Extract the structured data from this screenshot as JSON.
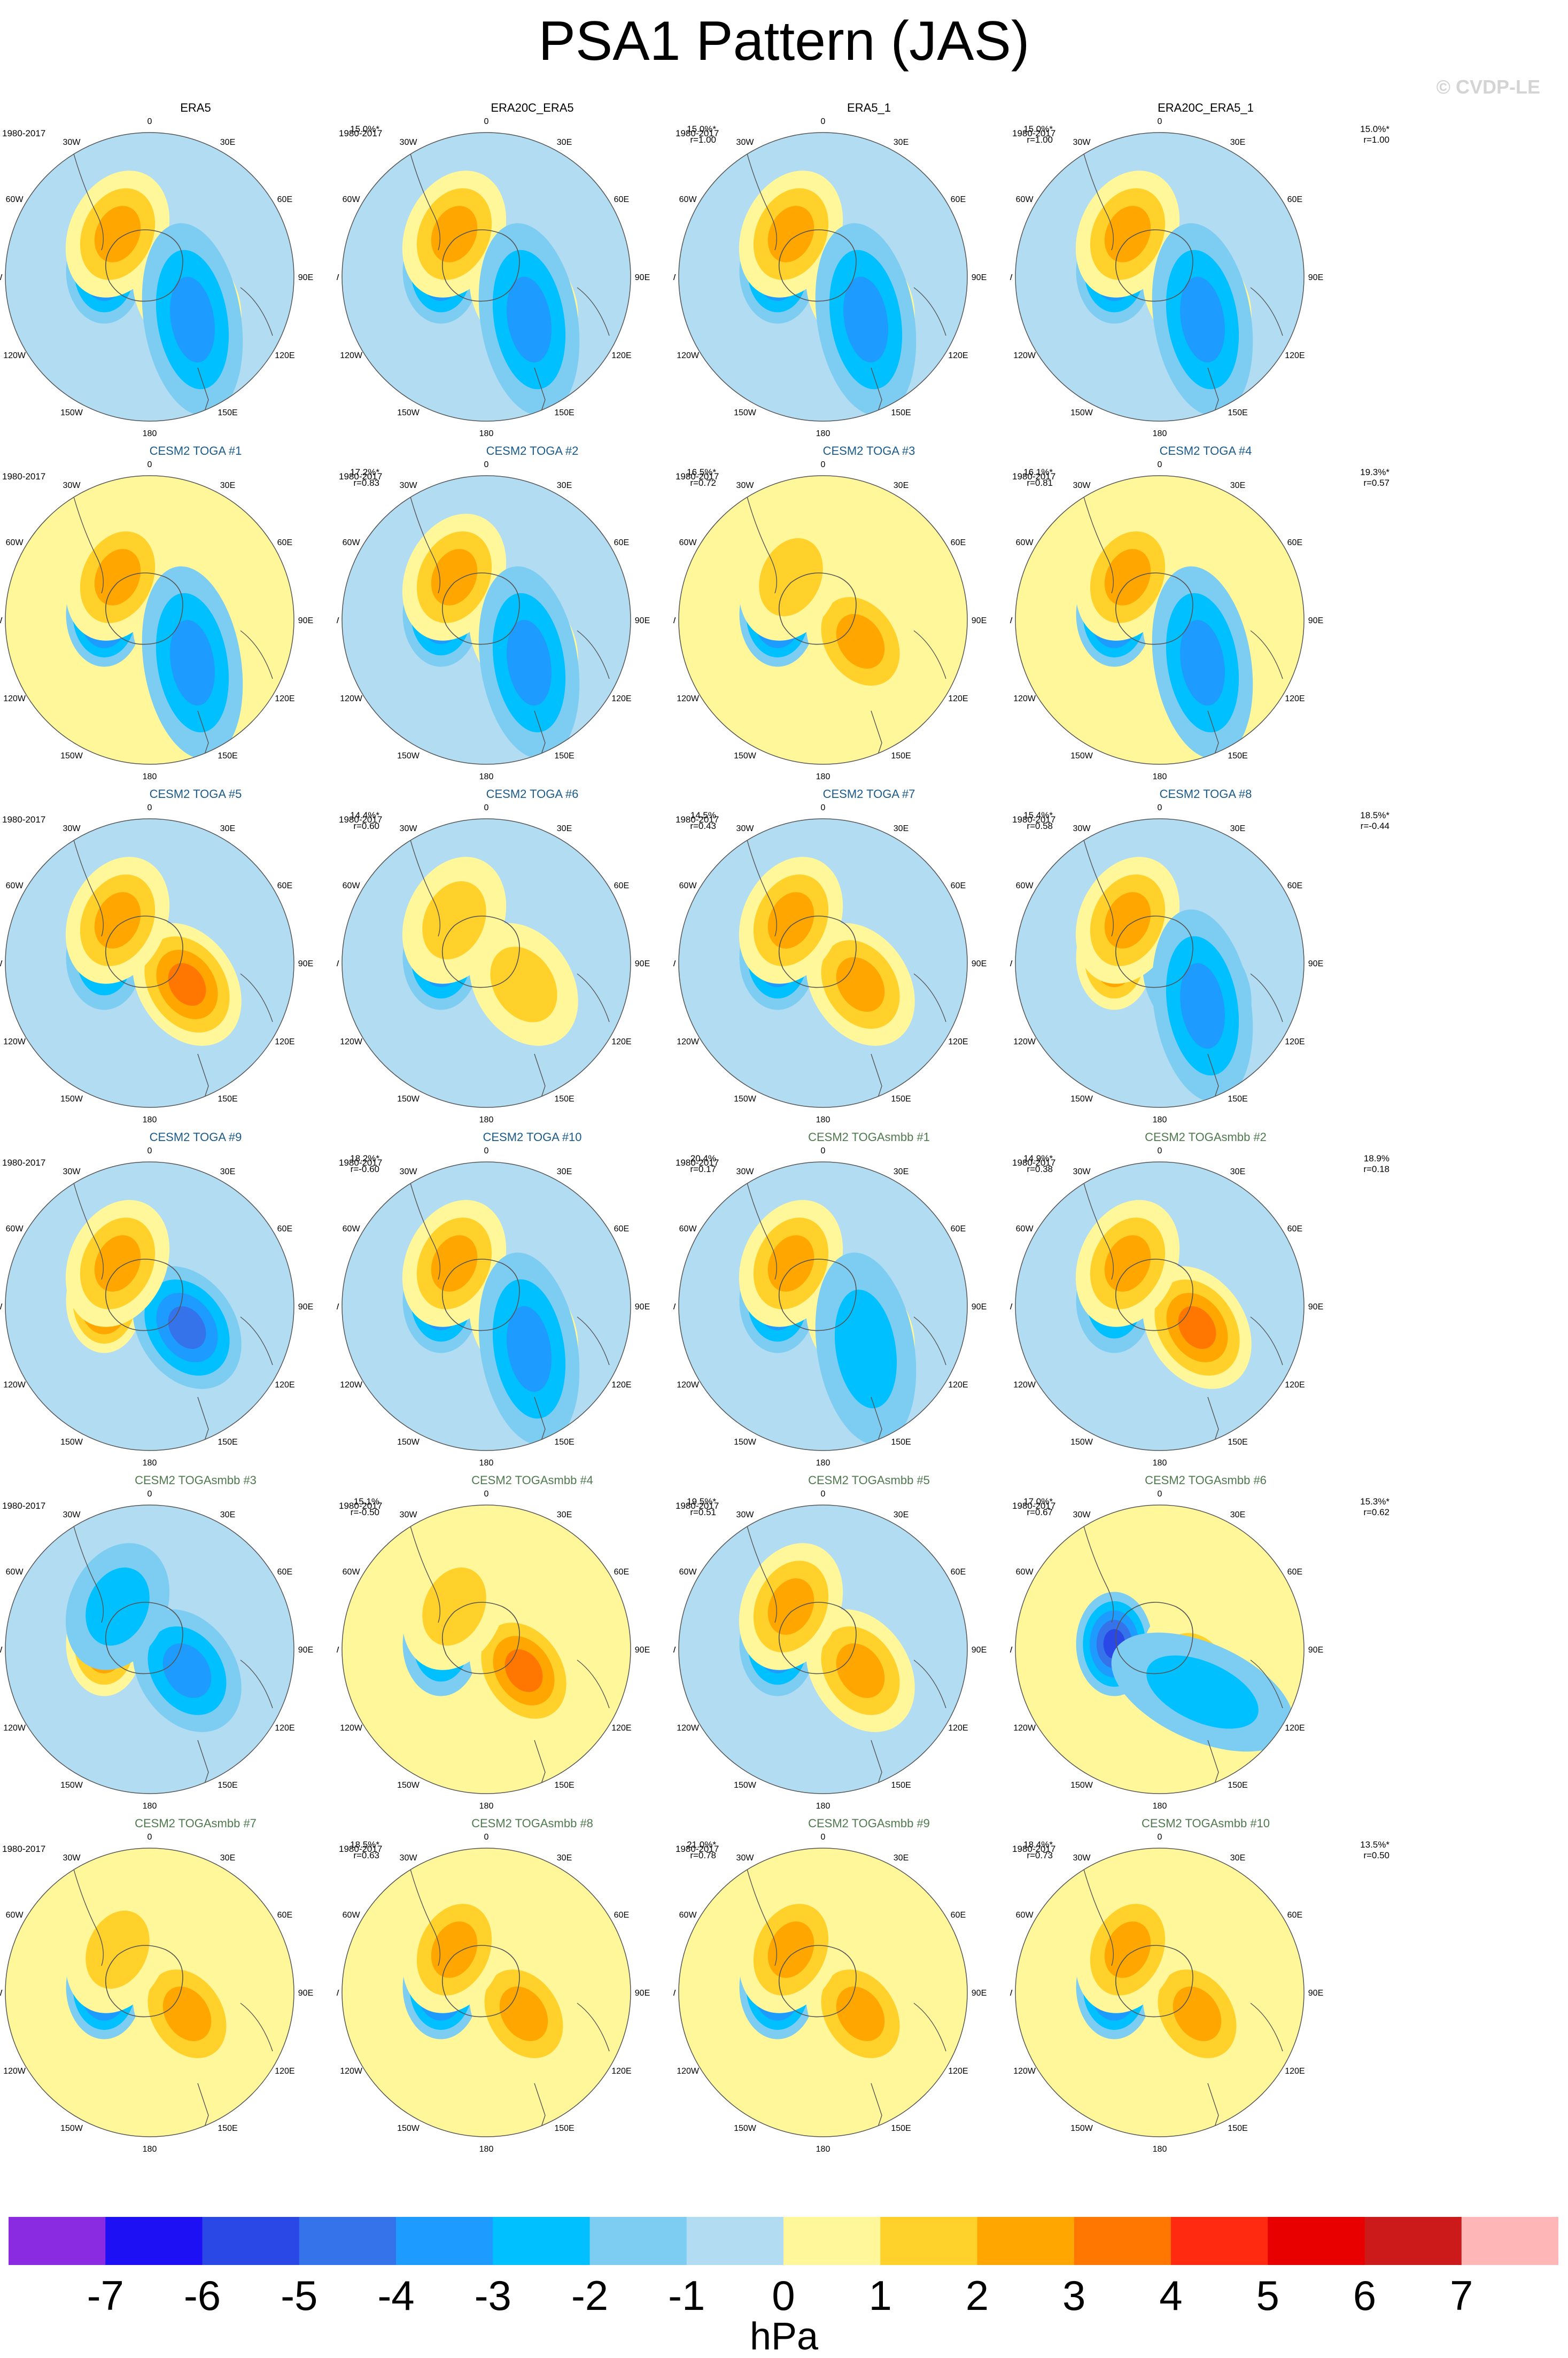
{
  "title": "PSA1 Pattern (JAS)",
  "watermark": "© CVDP-LE",
  "period": "1980-2017",
  "longitude_labels": [
    "0",
    "30E",
    "60E",
    "90E",
    "120E",
    "150E",
    "180",
    "150W",
    "120W",
    "90W",
    "60W",
    "30W"
  ],
  "palette": {
    "-7": "#8a2be2",
    "-6": "#1e10f5",
    "-5": "#2a48e6",
    "-4": "#3573ea",
    "-3": "#1d9bff",
    "-2": "#00c0ff",
    "-1": "#7dcdf2",
    "0": "#b2dcf2",
    "1": "#fff79a",
    "2": "#ffd12a",
    "3": "#ffa600",
    "4": "#ff7700",
    "5": "#ff2a10",
    "6": "#e80000",
    "7": "#cc1a1a",
    "8": "#ffb6b6"
  },
  "panels": [
    {
      "title": "ERA5",
      "group": "obs",
      "stats": [
        "15.0%*"
      ]
    },
    {
      "title": "ERA20C_ERA5",
      "group": "obs",
      "stats": [
        "15.0%*",
        "r=1.00"
      ]
    },
    {
      "title": "ERA5_1",
      "group": "obs",
      "stats": [
        "15.0%*",
        "r=1.00"
      ]
    },
    {
      "title": "ERA20C_ERA5_1",
      "group": "obs",
      "stats": [
        "15.0%*",
        "r=1.00"
      ]
    },
    {
      "title": "CESM2 TOGA #1",
      "group": "toga",
      "stats": [
        "17.2%*",
        "r=0.83"
      ]
    },
    {
      "title": "CESM2 TOGA #2",
      "group": "toga",
      "stats": [
        "16.5%*",
        "r=0.72"
      ]
    },
    {
      "title": "CESM2 TOGA #3",
      "group": "toga",
      "stats": [
        "16.1%*",
        "r=0.81"
      ]
    },
    {
      "title": "CESM2 TOGA #4",
      "group": "toga",
      "stats": [
        "19.3%*",
        "r=0.57"
      ]
    },
    {
      "title": "CESM2 TOGA #5",
      "group": "toga",
      "stats": [
        "14.4%*",
        "r=0.60"
      ]
    },
    {
      "title": "CESM2 TOGA #6",
      "group": "toga",
      "stats": [
        "14.5%",
        "r=0.43"
      ]
    },
    {
      "title": "CESM2 TOGA #7",
      "group": "toga",
      "stats": [
        "15.4%*",
        "r=0.58"
      ]
    },
    {
      "title": "CESM2 TOGA #8",
      "group": "toga",
      "stats": [
        "18.5%*",
        "r=-0.44"
      ]
    },
    {
      "title": "CESM2 TOGA #9",
      "group": "toga",
      "stats": [
        "18.2%*",
        "r=-0.60"
      ]
    },
    {
      "title": "CESM2 TOGA #10",
      "group": "toga",
      "stats": [
        "20.4%",
        "r=0.17"
      ]
    },
    {
      "title": "CESM2 TOGAsmbb #1",
      "group": "mbb",
      "stats": [
        "14.9%*",
        "r=0.38"
      ]
    },
    {
      "title": "CESM2 TOGAsmbb #2",
      "group": "mbb",
      "stats": [
        "18.9%",
        "r=0.18"
      ]
    },
    {
      "title": "CESM2 TOGAsmbb #3",
      "group": "mbb",
      "stats": [
        "15.1%",
        "r=-0.50"
      ]
    },
    {
      "title": "CESM2 TOGAsmbb #4",
      "group": "mbb",
      "stats": [
        "19.5%*",
        "r=0.51"
      ]
    },
    {
      "title": "CESM2 TOGAsmbb #5",
      "group": "mbb",
      "stats": [
        "17.0%*",
        "r=0.67"
      ]
    },
    {
      "title": "CESM2 TOGAsmbb #6",
      "group": "mbb",
      "stats": [
        "15.3%*",
        "r=0.62"
      ]
    },
    {
      "title": "CESM2 TOGAsmbb #7",
      "group": "mbb",
      "stats": [
        "18.5%*",
        "r=0.63"
      ]
    },
    {
      "title": "CESM2 TOGAsmbb #8",
      "group": "mbb",
      "stats": [
        "21.0%*",
        "r=0.78"
      ]
    },
    {
      "title": "CESM2 TOGAsmbb #9",
      "group": "mbb",
      "stats": [
        "18.4%*",
        "r=0.73"
      ]
    },
    {
      "title": "CESM2 TOGAsmbb #10",
      "group": "mbb",
      "stats": [
        "13.5%*",
        "r=0.50"
      ]
    }
  ],
  "patterns": [
    {
      "bg": 0,
      "c": [
        [
          -4,
          -7.8,
          0,
          -5,
          "S"
        ],
        [
          2.5,
          -11,
          0,
          2.2,
          "M"
        ],
        [
          2.5,
          11,
          0,
          2,
          "M"
        ],
        [
          -2.5,
          26,
          0,
          1.5,
          "L"
        ]
      ]
    },
    {
      "bg": 0,
      "c": [
        [
          -4,
          -7.8,
          0,
          -5,
          "S"
        ],
        [
          2.5,
          -11,
          0,
          2.2,
          "M"
        ],
        [
          2.5,
          11,
          0,
          1.8,
          "M"
        ],
        [
          -2.5,
          26,
          0,
          1.8,
          "L"
        ]
      ]
    },
    {
      "bg": 0,
      "c": [
        [
          -4,
          -7.8,
          0,
          -5,
          "S"
        ],
        [
          2.5,
          -11,
          0,
          2.2,
          "M"
        ],
        [
          2.5,
          11,
          0,
          1.8,
          "M"
        ],
        [
          -2.5,
          26,
          0,
          1.8,
          "L"
        ]
      ]
    },
    {
      "bg": 0,
      "c": [
        [
          -4,
          -7.8,
          0,
          -5,
          "S"
        ],
        [
          2.5,
          -11,
          0,
          2.2,
          "M"
        ],
        [
          2.5,
          11,
          0,
          1.8,
          "M"
        ],
        [
          -2.5,
          26,
          0,
          2.2,
          "L"
        ]
      ]
    },
    {
      "bg": 1,
      "c": [
        [
          -5,
          -7.8,
          0,
          -6,
          "S"
        ],
        [
          2.5,
          -11,
          0,
          2.5,
          "M"
        ],
        [
          2.5,
          11,
          0,
          2.5,
          "M"
        ],
        [
          -2.5,
          26,
          0,
          1.8,
          "L"
        ]
      ]
    },
    {
      "bg": 0,
      "c": [
        [
          -4,
          -7.8,
          0,
          -5,
          "S"
        ],
        [
          2.5,
          -11,
          0,
          2.5,
          "M"
        ],
        [
          2.5,
          11,
          0,
          2.5,
          "M"
        ],
        [
          -2.5,
          26,
          0,
          1.8,
          "L"
        ]
      ]
    },
    {
      "bg": 1,
      "c": [
        [
          -5,
          -7.8,
          0,
          -6,
          "S"
        ],
        [
          2.5,
          -11,
          0,
          2.5,
          "M"
        ],
        [
          2,
          10,
          0,
          1.6,
          "M"
        ]
      ]
    },
    {
      "bg": 1,
      "c": [
        [
          -5,
          -7.8,
          0,
          -5,
          "S"
        ],
        [
          3.5,
          -11,
          0,
          4,
          "M"
        ],
        [
          2.5,
          11,
          0,
          2.5,
          "M"
        ],
        [
          -2.5,
          26,
          0,
          1.8,
          "L"
        ]
      ]
    },
    {
      "bg": 0,
      "c": [
        [
          -3,
          -7.8,
          0,
          -4,
          "S"
        ],
        [
          3.5,
          -11,
          0,
          4,
          "M"
        ],
        [
          2.5,
          11,
          0,
          2.5,
          "M"
        ]
      ]
    },
    {
      "bg": 0,
      "c": [
        [
          -4,
          -7.8,
          0,
          -5,
          "S"
        ],
        [
          2,
          -11,
          0,
          2,
          "M"
        ],
        [
          2,
          11,
          0,
          2,
          "M"
        ]
      ]
    },
    {
      "bg": 0,
      "c": [
        [
          -4,
          -7.8,
          0,
          -5,
          "S"
        ],
        [
          2.5,
          -11,
          0,
          3,
          "M"
        ],
        [
          2.5,
          11,
          0,
          2.5,
          "M"
        ]
      ]
    },
    {
      "bg": 0,
      "c": [
        [
          3.5,
          -7.8,
          0,
          -4,
          "S"
        ],
        [
          -3.5,
          -11,
          0,
          -4,
          "M"
        ],
        [
          2.5,
          11,
          0,
          2.5,
          "M"
        ],
        [
          -2.5,
          26,
          0,
          -2.5,
          "L"
        ]
      ]
    },
    {
      "bg": 0,
      "c": [
        [
          5,
          -7.8,
          0,
          -6,
          "S"
        ],
        [
          -4,
          -11,
          0,
          -4,
          "M"
        ],
        [
          2.5,
          11,
          0,
          2.5,
          "M"
        ]
      ]
    },
    {
      "bg": 0,
      "c": [
        [
          -4,
          -7.8,
          0,
          -5,
          "S"
        ],
        [
          2.5,
          -11,
          0,
          3,
          "M"
        ],
        [
          2.5,
          11,
          0,
          2.5,
          "M"
        ],
        [
          -2.5,
          26,
          0,
          -2.5,
          "L"
        ]
      ]
    },
    {
      "bg": 0,
      "c": [
        [
          -4,
          -7.8,
          0,
          -4,
          "S"
        ],
        [
          2.5,
          -11,
          0,
          2.5,
          "M"
        ],
        [
          2.5,
          11,
          0,
          2.5,
          "M"
        ],
        [
          -2,
          26,
          0,
          -2,
          "L"
        ]
      ]
    },
    {
      "bg": 0,
      "c": [
        [
          -3,
          -7.8,
          0,
          -4,
          "S"
        ],
        [
          3.5,
          -11,
          0,
          3.5,
          "M"
        ],
        [
          2.5,
          11,
          0,
          2.5,
          "M"
        ]
      ]
    },
    {
      "bg": 0,
      "c": [
        [
          3.5,
          -7.8,
          0,
          -4,
          "S"
        ],
        [
          -3,
          -11,
          0,
          -3,
          "M"
        ],
        [
          -2,
          11,
          0,
          -2,
          "M"
        ]
      ]
    },
    {
      "bg": 1,
      "c": [
        [
          -3,
          -7.8,
          0,
          -3,
          "S"
        ],
        [
          3.5,
          -11,
          0,
          3.5,
          "M"
        ],
        [
          2,
          11,
          0,
          2,
          "M"
        ]
      ]
    },
    {
      "bg": 0,
      "c": [
        [
          -4,
          -7.8,
          0,
          -5,
          "S"
        ],
        [
          2.5,
          -11,
          0,
          3,
          "M"
        ],
        [
          2.5,
          11,
          0,
          2.5,
          "M"
        ]
      ]
    },
    {
      "bg": 1,
      "c": [
        [
          -5,
          -7.8,
          0,
          -5,
          "S"
        ],
        [
          2,
          -11,
          0,
          2,
          "M"
        ],
        [
          -2,
          26,
          0,
          -2,
          "L"
        ]
      ]
    },
    {
      "bg": 1,
      "c": [
        [
          -5,
          -7.8,
          0,
          -6,
          "S"
        ],
        [
          2.5,
          -11,
          0,
          2,
          "M"
        ],
        [
          2,
          11,
          0,
          2,
          "M"
        ]
      ]
    },
    {
      "bg": 1,
      "c": [
        [
          -5,
          -7.8,
          0,
          -6,
          "S"
        ],
        [
          2.5,
          -11,
          0,
          2.5,
          "M"
        ],
        [
          2.5,
          11,
          0,
          2.5,
          "M"
        ]
      ]
    },
    {
      "bg": 1,
      "c": [
        [
          -5,
          -7.8,
          0,
          -5,
          "S"
        ],
        [
          2.5,
          -11,
          0,
          3,
          "M"
        ],
        [
          2.5,
          11,
          0,
          2.5,
          "M"
        ]
      ]
    },
    {
      "bg": 1,
      "c": [
        [
          -5,
          -7.8,
          0,
          -5,
          "S"
        ],
        [
          3,
          -11,
          0,
          3,
          "M"
        ],
        [
          2.5,
          11,
          0,
          2.5,
          "M"
        ]
      ]
    }
  ],
  "colorbar": {
    "ticks": [
      "-7",
      "-6",
      "-5",
      "-4",
      "-3",
      "-2",
      "-1",
      "0",
      "1",
      "2",
      "3",
      "4",
      "5",
      "6",
      "7"
    ],
    "units": "hPa"
  }
}
